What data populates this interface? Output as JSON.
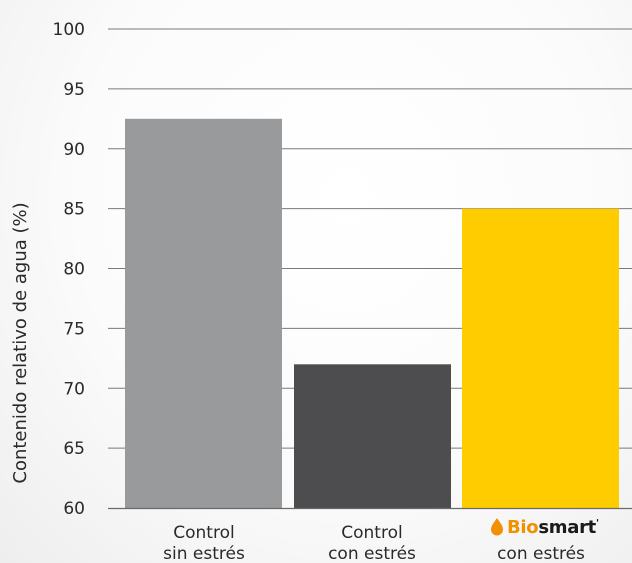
{
  "chart_data": {
    "type": "bar",
    "ylabel": "Contenido relativo de agua (%)",
    "ylim": [
      60,
      100
    ],
    "yticks": [
      60,
      65,
      70,
      75,
      80,
      85,
      90,
      95,
      100
    ],
    "grid": true,
    "categories": [
      {
        "line1": "Control",
        "line2": "sin estrés",
        "brand": false
      },
      {
        "line1": "Control",
        "line2": "con estrés",
        "brand": false
      },
      {
        "line1": "Biosmart",
        "line2": "con estrés",
        "brand": true
      }
    ],
    "values": [
      92.5,
      72,
      85
    ],
    "colors": [
      "#999a9b",
      "#4d4d4f",
      "#ffcc00"
    ]
  },
  "brand": {
    "name_prefix": "Bio",
    "name_suffix": "smart",
    "mark": "'",
    "icon": "water-drop-icon",
    "prefix_color": "#f29100",
    "suffix_color": "#1a1a1a"
  }
}
